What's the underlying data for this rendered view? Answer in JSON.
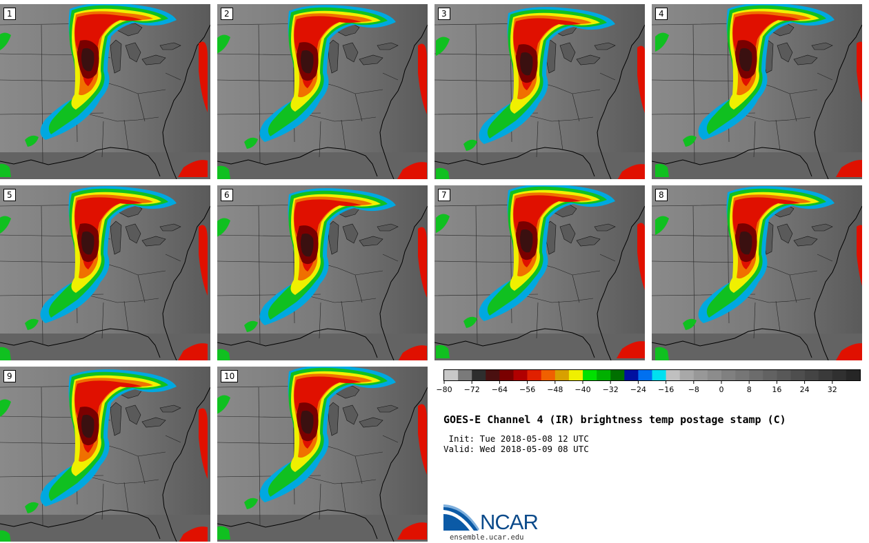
{
  "panels": [
    {
      "label": "1"
    },
    {
      "label": "2"
    },
    {
      "label": "3"
    },
    {
      "label": "4"
    },
    {
      "label": "5"
    },
    {
      "label": "6"
    },
    {
      "label": "7"
    },
    {
      "label": "8"
    },
    {
      "label": "9"
    },
    {
      "label": "10"
    }
  ],
  "colorbar": {
    "colors": [
      "#c8c8c8",
      "#7a7a7a",
      "#2e2e2e",
      "#4a1010",
      "#7a0000",
      "#b00000",
      "#e02000",
      "#f06000",
      "#d8a000",
      "#f0f000",
      "#00e000",
      "#00b000",
      "#007000",
      "#0010a0",
      "#0070f0",
      "#00e0f0",
      "#c0c0c0",
      "#a8a8a8",
      "#989898",
      "#8c8c8c",
      "#808080",
      "#767676",
      "#6c6c6c",
      "#626262",
      "#585858",
      "#4e4e4e",
      "#444444",
      "#3a3a3a",
      "#303030",
      "#262626"
    ],
    "ticks": [
      "−80",
      "−72",
      "−64",
      "−56",
      "−48",
      "−40",
      "−32",
      "−24",
      "−16",
      "−8",
      "0",
      "8",
      "16",
      "24",
      "32"
    ]
  },
  "title": "GOES-E Channel 4 (IR) brightness temp postage stamp (C)",
  "init": " Init: Tue 2018-05-08 12 UTC",
  "valid": "Valid: Wed 2018-05-09 08 UTC",
  "logo_text": "NCAR",
  "website": "ensemble.ucar.edu"
}
